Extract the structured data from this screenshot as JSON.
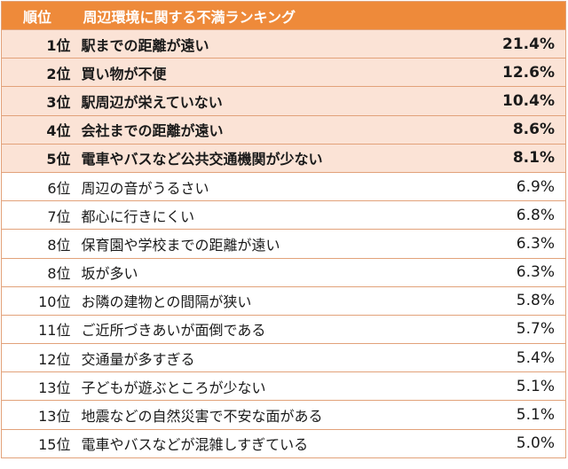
{
  "table": {
    "header": {
      "rank": "順位",
      "item": "周辺環境に関する不満ランキング"
    },
    "rows": [
      {
        "rank": "1位",
        "item": "駅までの距離が遠い",
        "percent": "21.4%",
        "top5": true
      },
      {
        "rank": "2位",
        "item": "買い物が不便",
        "percent": "12.6%",
        "top5": true
      },
      {
        "rank": "3位",
        "item": "駅周辺が栄えていない",
        "percent": "10.4%",
        "top5": true
      },
      {
        "rank": "4位",
        "item": "会社までの距離が遠い",
        "percent": "8.6%",
        "top5": true
      },
      {
        "rank": "5位",
        "item": "電車やバスなど公共交通機関が少ない",
        "percent": "8.1%",
        "top5": true
      },
      {
        "rank": "6位",
        "item": "周辺の音がうるさい",
        "percent": "6.9%",
        "top5": false
      },
      {
        "rank": "7位",
        "item": "都心に行きにくい",
        "percent": "6.8%",
        "top5": false
      },
      {
        "rank": "8位",
        "item": "保育園や学校までの距離が遠い",
        "percent": "6.3%",
        "top5": false
      },
      {
        "rank": "8位",
        "item": "坂が多い",
        "percent": "6.3%",
        "top5": false
      },
      {
        "rank": "10位",
        "item": "お隣の建物との間隔が狭い",
        "percent": "5.8%",
        "top5": false
      },
      {
        "rank": "11位",
        "item": "ご近所づきあいが面倒である",
        "percent": "5.7%",
        "top5": false
      },
      {
        "rank": "12位",
        "item": "交通量が多すぎる",
        "percent": "5.4%",
        "top5": false
      },
      {
        "rank": "13位",
        "item": "子どもが遊ぶところが少ない",
        "percent": "5.1%",
        "top5": false
      },
      {
        "rank": "13位",
        "item": "地震などの自然災害で不安な面がある",
        "percent": "5.1%",
        "top5": false
      },
      {
        "rank": "15位",
        "item": "電車やバスなどが混雑しすぎている",
        "percent": "5.0%",
        "top5": false
      }
    ],
    "colors": {
      "header_bg": "#ee8a3a",
      "highlight_bg": "#fbe3d6",
      "border": "#e2a27a"
    }
  }
}
